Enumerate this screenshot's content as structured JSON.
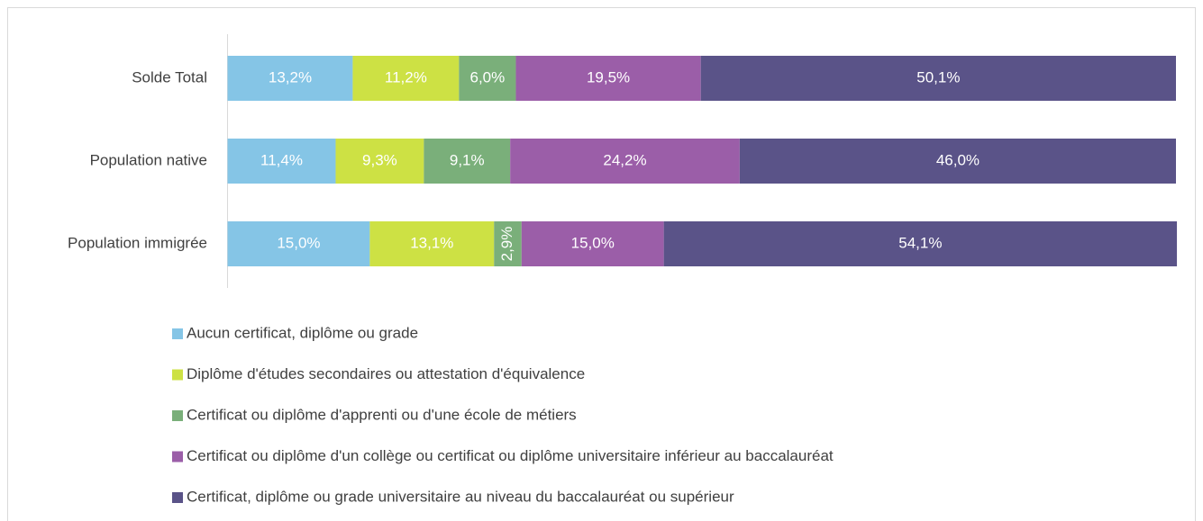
{
  "chart_data": {
    "type": "stacked-bar-horizontal",
    "categories": [
      "Solde Total",
      "Population native",
      "Population immigrée"
    ],
    "xlim": [
      0,
      100
    ],
    "legend": "bottom",
    "series": [
      {
        "name": "Aucun certificat, diplôme ou grade",
        "color": "#85c5e6",
        "values": [
          13.2,
          11.4,
          15.0
        ],
        "value_labels": [
          "13,2%",
          "11,4%",
          "15,0%"
        ]
      },
      {
        "name": "Diplôme d'études secondaires ou attestation d'équivalence",
        "color": "#cde144",
        "values": [
          11.2,
          9.3,
          13.1
        ],
        "value_labels": [
          "11,2%",
          "9,3%",
          "13,1%"
        ]
      },
      {
        "name": "Certificat ou diplôme d'apprenti ou d'une école de métiers",
        "color": "#7aaf7a",
        "values": [
          6.0,
          9.1,
          2.9
        ],
        "value_labels": [
          "6,0%",
          "9,1%",
          "2,9%"
        ]
      },
      {
        "name": "Certificat ou diplôme d'un collège ou certificat ou diplôme universitaire inférieur au baccalauréat",
        "color": "#9b5ea8",
        "values": [
          19.5,
          24.2,
          15.0
        ],
        "value_labels": [
          "19,5%",
          "24,2%",
          "15,0%"
        ]
      },
      {
        "name": "Certificat, diplôme ou grade universitaire au niveau du baccalauréat ou supérieur",
        "color": "#5a5388",
        "values": [
          50.1,
          46.0,
          54.1
        ],
        "value_labels": [
          "50,1%",
          "46,0%",
          "54,1%"
        ]
      }
    ]
  }
}
